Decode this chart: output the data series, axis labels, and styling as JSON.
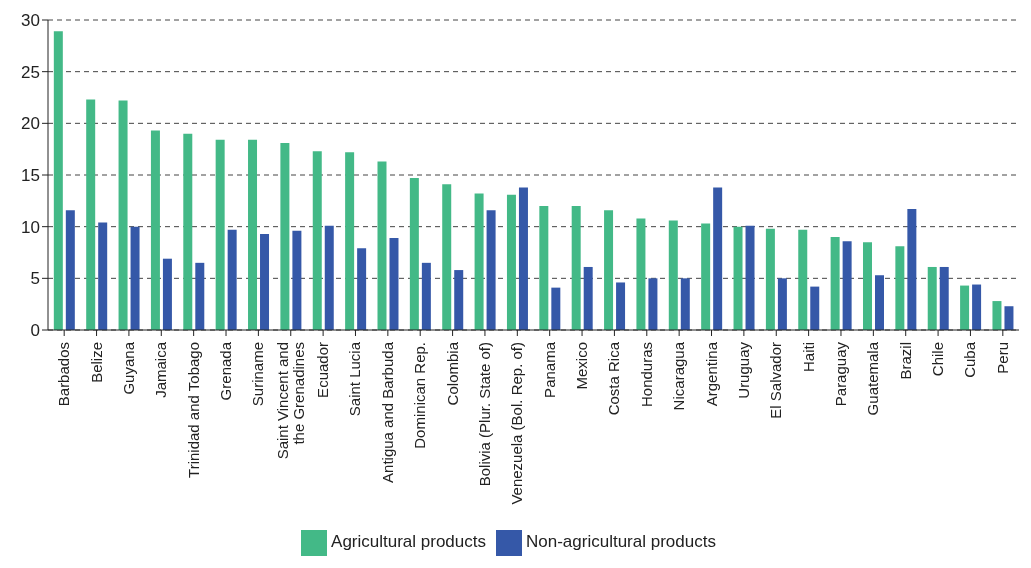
{
  "chart_data": {
    "type": "bar",
    "categories": [
      "Barbados",
      "Belize",
      "Guyana",
      "Jamaica",
      "Trinidad and Tobago",
      "Grenada",
      "Suriname",
      "Saint Vincent and the Grenadines",
      "Ecuador",
      "Saint Lucia",
      "Antigua and Barbuda",
      "Dominican Rep.",
      "Colombia",
      "Bolivia (Plur. State of)",
      "Venezuela (Bol. Rep. of)",
      "Panama",
      "Mexico",
      "Costa Rica",
      "Honduras",
      "Nicaragua",
      "Argentina",
      "Uruguay",
      "El Salvador",
      "Haiti",
      "Paraguay",
      "Guatemala",
      "Brazil",
      "Chile",
      "Cuba",
      "Peru"
    ],
    "series": [
      {
        "name": "Agricultural products",
        "color": "#43b987",
        "values": [
          28.9,
          22.3,
          22.2,
          19.3,
          19.0,
          18.4,
          18.4,
          18.1,
          17.3,
          17.2,
          16.3,
          14.7,
          14.1,
          13.2,
          13.1,
          12.0,
          12.0,
          11.6,
          10.8,
          10.6,
          10.3,
          10.0,
          9.8,
          9.7,
          9.0,
          8.5,
          8.1,
          6.1,
          4.3,
          2.8
        ]
      },
      {
        "name": "Non-agricultural products",
        "color": "#3558a8",
        "values": [
          11.6,
          10.4,
          10.0,
          6.9,
          6.5,
          9.7,
          9.3,
          9.6,
          10.1,
          7.9,
          8.9,
          6.5,
          5.8,
          11.6,
          13.8,
          4.1,
          6.1,
          4.6,
          5.0,
          5.0,
          13.8,
          10.1,
          5.0,
          4.2,
          8.6,
          5.3,
          11.7,
          6.1,
          4.4,
          2.3
        ]
      }
    ],
    "ylim": [
      0,
      30
    ],
    "yticks": [
      0,
      5,
      10,
      15,
      20,
      25,
      30
    ],
    "grid": "y",
    "legend": "bottom"
  }
}
